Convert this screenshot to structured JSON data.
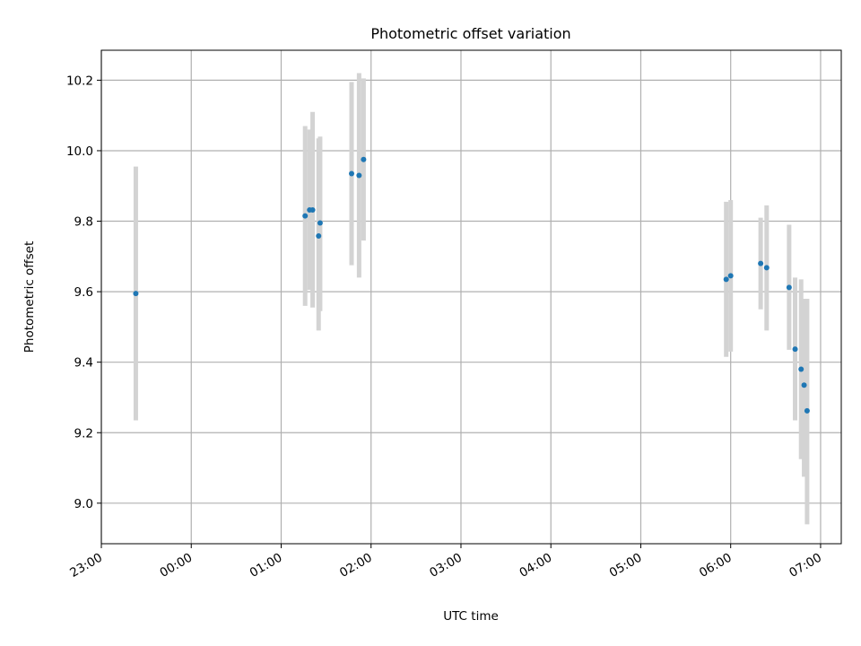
{
  "chart_data": {
    "type": "scatter",
    "title": "Photometric offset variation",
    "xlabel": "UTC time",
    "ylabel": "Photometric offset",
    "x_tick_labels": [
      "23:00",
      "00:00",
      "01:00",
      "02:00",
      "03:00",
      "04:00",
      "05:00",
      "06:00",
      "07:00"
    ],
    "y_tick_labels": [
      "9.0",
      "9.2",
      "9.4",
      "9.6",
      "9.8",
      "10.0",
      "10.2"
    ],
    "y_ticks": [
      9.0,
      9.2,
      9.4,
      9.6,
      9.8,
      10.0,
      10.2
    ],
    "xlim_hours": [
      23.0,
      31.23
    ],
    "ylim": [
      8.885,
      10.285
    ],
    "grid": true,
    "colors": {
      "marker": "#1f77b4",
      "errorbar": "#d3d3d3",
      "grid": "#b0b0b0"
    },
    "points": [
      {
        "time": "23:23",
        "value": 9.595,
        "err_low": 9.235,
        "err_high": 9.955
      },
      {
        "time": "01:16",
        "value": 9.815,
        "err_low": 9.56,
        "err_high": 10.07
      },
      {
        "time": "01:19",
        "value": 9.832,
        "err_low": 9.605,
        "err_high": 10.06
      },
      {
        "time": "01:21",
        "value": 9.832,
        "err_low": 9.555,
        "err_high": 10.11
      },
      {
        "time": "01:25",
        "value": 9.758,
        "err_low": 9.49,
        "err_high": 10.035
      },
      {
        "time": "01:26",
        "value": 9.795,
        "err_low": 9.545,
        "err_high": 10.04
      },
      {
        "time": "01:47",
        "value": 9.935,
        "err_low": 9.675,
        "err_high": 10.195
      },
      {
        "time": "01:52",
        "value": 9.93,
        "err_low": 9.64,
        "err_high": 10.22
      },
      {
        "time": "01:55",
        "value": 9.975,
        "err_low": 9.745,
        "err_high": 10.205
      },
      {
        "time": "05:57",
        "value": 9.635,
        "err_low": 9.415,
        "err_high": 9.855
      },
      {
        "time": "06:00",
        "value": 9.645,
        "err_low": 9.43,
        "err_high": 9.86
      },
      {
        "time": "06:20",
        "value": 9.68,
        "err_low": 9.55,
        "err_high": 9.81
      },
      {
        "time": "06:24",
        "value": 9.668,
        "err_low": 9.49,
        "err_high": 9.845
      },
      {
        "time": "06:39",
        "value": 9.612,
        "err_low": 9.435,
        "err_high": 9.79
      },
      {
        "time": "06:43",
        "value": 9.437,
        "err_low": 9.235,
        "err_high": 9.64
      },
      {
        "time": "06:47",
        "value": 9.38,
        "err_low": 9.125,
        "err_high": 9.635
      },
      {
        "time": "06:49",
        "value": 9.335,
        "err_low": 9.075,
        "err_high": 9.58
      },
      {
        "time": "06:51",
        "value": 9.262,
        "err_low": 8.94,
        "err_high": 9.58
      }
    ]
  }
}
